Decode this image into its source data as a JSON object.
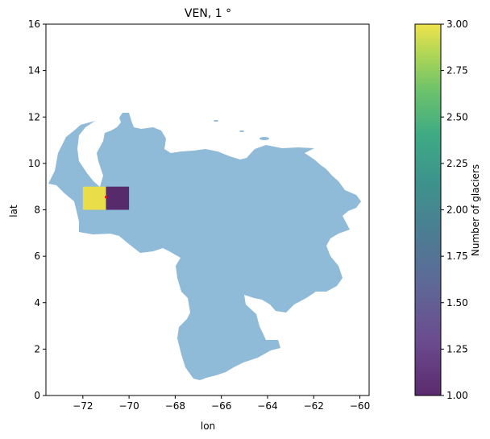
{
  "chart_data": {
    "type": "heatmap",
    "title": "VEN, 1 °",
    "xlabel": "lon",
    "ylabel": "lat",
    "xlim": [
      -73.6,
      -59.6
    ],
    "ylim": [
      0,
      16
    ],
    "xticks": [
      -72,
      -70,
      -68,
      -66,
      -64,
      -62,
      -60
    ],
    "yticks": [
      0,
      2,
      4,
      6,
      8,
      10,
      12,
      14,
      16
    ],
    "cells": [
      {
        "lon0": -72,
        "lon1": -71,
        "lat0": 8,
        "lat1": 9,
        "count": 3
      },
      {
        "lon0": -71,
        "lon1": -70,
        "lat0": 8,
        "lat1": 9,
        "count": 1
      }
    ],
    "glacier_points": [
      {
        "lon": -71.0,
        "lat": 8.55
      }
    ],
    "colorbar": {
      "label": "Number of glaciers",
      "min": 1.0,
      "max": 3.0,
      "ticks": [
        "1.00",
        "1.25",
        "1.50",
        "1.75",
        "2.00",
        "2.25",
        "2.50",
        "2.75",
        "3.00"
      ],
      "colormap": "viridis"
    },
    "country_fill_color": "#8fbad8",
    "point_color": "#e8151b",
    "grid": false
  }
}
